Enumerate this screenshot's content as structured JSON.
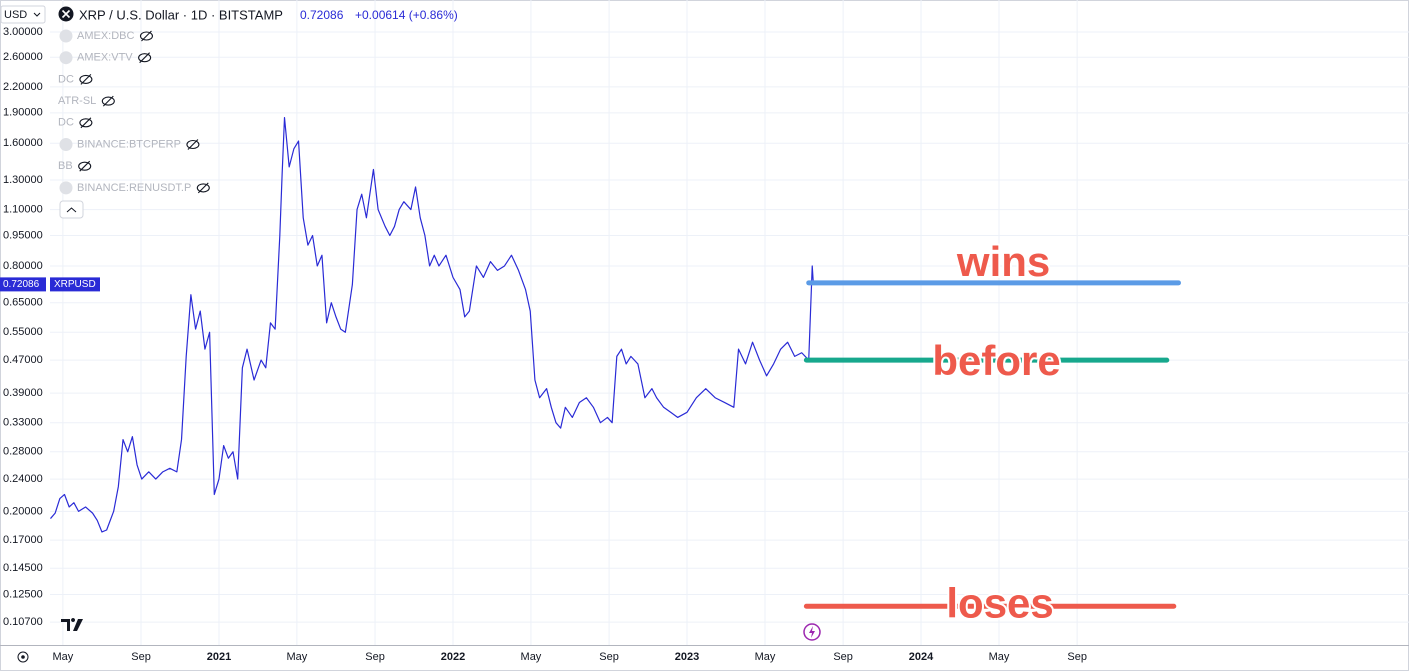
{
  "chart_data": {
    "type": "line",
    "title": "XRP / U.S. Dollar · 1D · BITSTAMP",
    "change": "+0.00614 (+0.86%)",
    "currency": "USD",
    "indicators": [
      "AMEX:DBC",
      "AMEX:VTV",
      "DC",
      "ATR-SL",
      "DC",
      "BINANCE:BTCPERP",
      "BB",
      "BINANCE:RENUSDT.P"
    ],
    "log_scale": true,
    "grid": true,
    "xlim": [
      2020.278,
      2026.085
    ],
    "xticks": [
      {
        "value": 2020.333,
        "label": "May"
      },
      {
        "value": 2020.667,
        "label": "Sep"
      },
      2021,
      {
        "value": 2021.333,
        "label": "May"
      },
      {
        "value": 2021.667,
        "label": "Sep"
      },
      2022,
      {
        "value": 2022.333,
        "label": "May"
      },
      {
        "value": 2022.667,
        "label": "Sep"
      },
      2023,
      {
        "value": 2023.333,
        "label": "May"
      },
      {
        "value": 2023.667,
        "label": "Sep"
      },
      2024,
      {
        "value": 2024.333,
        "label": "May"
      },
      {
        "value": 2024.667,
        "label": "Sep"
      }
    ],
    "ylim": [
      0.094,
      3.594
    ],
    "yticks": [
      {
        "value": 3,
        "label": "3.00000"
      },
      {
        "value": 2.6,
        "label": "2.60000"
      },
      {
        "value": 2.2,
        "label": "2.20000"
      },
      {
        "value": 1.9,
        "label": "1.90000"
      },
      {
        "value": 1.6,
        "label": "1.60000"
      },
      {
        "value": 1.3,
        "label": "1.30000"
      },
      {
        "value": 1.1,
        "label": "1.10000"
      },
      {
        "value": 0.95,
        "label": "0.95000"
      },
      {
        "value": 0.8,
        "label": "0.80000"
      },
      {
        "value": 0.65,
        "label": "0.65000"
      },
      {
        "value": 0.55,
        "label": "0.55000"
      },
      {
        "value": 0.47,
        "label": "0.47000"
      },
      {
        "value": 0.39,
        "label": "0.39000"
      },
      {
        "value": 0.33,
        "label": "0.33000"
      },
      {
        "value": 0.28,
        "label": "0.28000"
      },
      {
        "value": 0.24,
        "label": "0.24000"
      },
      {
        "value": 0.2,
        "label": "0.20000"
      },
      {
        "value": 0.17,
        "label": "0.17000"
      },
      {
        "value": 0.145,
        "label": "0.14500"
      },
      {
        "value": 0.125,
        "label": "0.12500"
      },
      {
        "value": 0.107,
        "label": "0.10700"
      }
    ],
    "x": [
      2020.28,
      2020.3,
      2020.32,
      2020.34,
      2020.36,
      2020.38,
      2020.4,
      2020.43,
      2020.46,
      2020.48,
      2020.5,
      2020.52,
      2020.55,
      2020.57,
      2020.59,
      2020.61,
      2020.63,
      2020.65,
      2020.67,
      2020.7,
      2020.73,
      2020.76,
      2020.79,
      2020.82,
      2020.84,
      2020.86,
      2020.88,
      2020.9,
      2020.92,
      2020.94,
      2020.96,
      2020.98,
      2021.0,
      2021.02,
      2021.04,
      2021.06,
      2021.08,
      2021.1,
      2021.12,
      2021.15,
      2021.18,
      2021.2,
      2021.22,
      2021.24,
      2021.26,
      2021.27,
      2021.28,
      2021.3,
      2021.32,
      2021.34,
      2021.36,
      2021.38,
      2021.4,
      2021.42,
      2021.44,
      2021.46,
      2021.48,
      2021.5,
      2021.52,
      2021.54,
      2021.57,
      2021.59,
      2021.61,
      2021.63,
      2021.66,
      2021.68,
      2021.71,
      2021.73,
      2021.75,
      2021.77,
      2021.79,
      2021.82,
      2021.84,
      2021.86,
      2021.88,
      2021.9,
      2021.92,
      2021.94,
      2021.97,
      2022.0,
      2022.03,
      2022.05,
      2022.07,
      2022.1,
      2022.13,
      2022.16,
      2022.19,
      2022.22,
      2022.25,
      2022.28,
      2022.31,
      2022.33,
      2022.35,
      2022.37,
      2022.4,
      2022.42,
      2022.44,
      2022.46,
      2022.48,
      2022.51,
      2022.54,
      2022.57,
      2022.6,
      2022.63,
      2022.66,
      2022.68,
      2022.7,
      2022.72,
      2022.74,
      2022.76,
      2022.79,
      2022.82,
      2022.85,
      2022.87,
      2022.9,
      2022.93,
      2022.96,
      2023.0,
      2023.04,
      2023.08,
      2023.12,
      2023.16,
      2023.2,
      2023.22,
      2023.25,
      2023.28,
      2023.31,
      2023.34,
      2023.37,
      2023.4,
      2023.43,
      2023.46,
      2023.49,
      2023.52,
      2023.535,
      2023.54
    ],
    "series": [
      {
        "name": "XRPUSD",
        "color": "#2a2bd6",
        "values": [
          0.192,
          0.198,
          0.215,
          0.22,
          0.205,
          0.21,
          0.2,
          0.205,
          0.198,
          0.19,
          0.178,
          0.18,
          0.2,
          0.23,
          0.3,
          0.28,
          0.305,
          0.26,
          0.24,
          0.25,
          0.24,
          0.25,
          0.255,
          0.25,
          0.3,
          0.48,
          0.68,
          0.56,
          0.62,
          0.5,
          0.55,
          0.22,
          0.24,
          0.29,
          0.27,
          0.28,
          0.24,
          0.45,
          0.5,
          0.42,
          0.47,
          0.45,
          0.58,
          0.56,
          0.95,
          1.35,
          1.85,
          1.4,
          1.55,
          1.62,
          1.05,
          0.9,
          0.95,
          0.8,
          0.85,
          0.58,
          0.65,
          0.6,
          0.56,
          0.55,
          0.72,
          1.1,
          1.2,
          1.05,
          1.38,
          1.1,
          1.0,
          0.95,
          1.0,
          1.1,
          1.15,
          1.1,
          1.25,
          1.05,
          0.95,
          0.8,
          0.85,
          0.8,
          0.85,
          0.75,
          0.7,
          0.6,
          0.62,
          0.8,
          0.75,
          0.82,
          0.78,
          0.8,
          0.85,
          0.78,
          0.7,
          0.62,
          0.42,
          0.38,
          0.4,
          0.36,
          0.33,
          0.32,
          0.36,
          0.34,
          0.37,
          0.38,
          0.36,
          0.33,
          0.34,
          0.33,
          0.48,
          0.5,
          0.46,
          0.48,
          0.46,
          0.38,
          0.4,
          0.38,
          0.36,
          0.35,
          0.34,
          0.35,
          0.38,
          0.4,
          0.38,
          0.37,
          0.36,
          0.5,
          0.46,
          0.52,
          0.47,
          0.43,
          0.46,
          0.5,
          0.52,
          0.48,
          0.49,
          0.47,
          0.8,
          0.72086
        ]
      }
    ],
    "annotations": [
      {
        "text": "wins",
        "level": 0.727,
        "x": [
          2023.52,
          2025.1
        ],
        "color": "#5b9be6"
      },
      {
        "text": "before",
        "level": 0.47,
        "x": [
          2023.51,
          2025.05
        ],
        "color": "#17a88d"
      },
      {
        "text": "loses",
        "level": 0.117,
        "x": [
          2023.51,
          2025.08
        ],
        "color": "#ee5a4c"
      }
    ]
  }
}
